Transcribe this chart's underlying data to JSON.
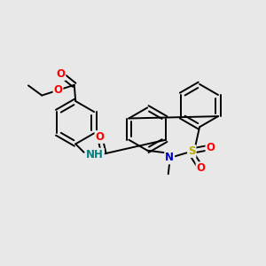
{
  "bg_color": "#e8e8e8",
  "bond_color": "#000000",
  "bond_width": 1.4,
  "atom_colors": {
    "O": "#ff0000",
    "N": "#0000cc",
    "S": "#bbaa00",
    "NH": "#008080",
    "C": "#000000"
  },
  "font_size": 8.5
}
